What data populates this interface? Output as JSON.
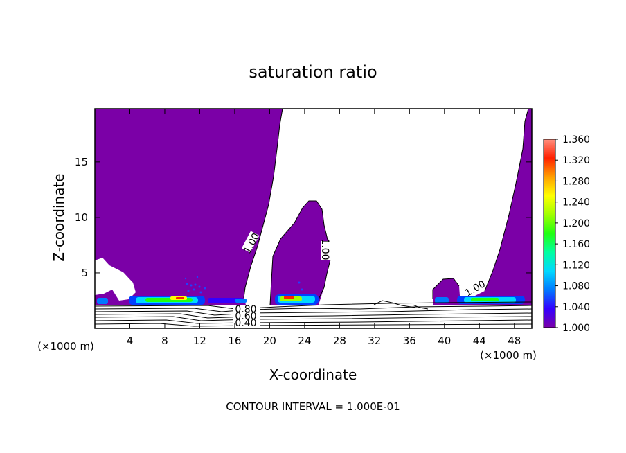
{
  "chart_data": {
    "type": "heatmap",
    "title": "saturation ratio",
    "xlabel": "X-coordinate",
    "ylabel": "Z-coordinate",
    "x_unit_left": "(×1000 m)",
    "x_unit_right": "(×1000 m)",
    "footer": "CONTOUR INTERVAL = 1.000E-01",
    "xlim": [
      0,
      50
    ],
    "ylim": [
      0,
      19.8
    ],
    "xticks": [
      4,
      8,
      12,
      16,
      20,
      24,
      28,
      32,
      36,
      40,
      44,
      48
    ],
    "yticks": [
      5,
      10,
      15
    ],
    "colorbar": {
      "min": 1.0,
      "max": 1.36,
      "labels": [
        "1.360",
        "1.320",
        "1.280",
        "1.240",
        "1.200",
        "1.160",
        "1.120",
        "1.080",
        "1.040",
        "1.000"
      ],
      "colors": [
        "#7b00a7",
        "#3300ff",
        "#0078ff",
        "#00d8ff",
        "#00ffa0",
        "#20ff10",
        "#a0ff00",
        "#ffff00",
        "#ffa000",
        "#ff2000",
        "#ff9080"
      ]
    },
    "contour_labels": [
      {
        "text": "1.00",
        "x": 17.0,
        "z": 7.0,
        "angle": -62
      },
      {
        "text": "1.00",
        "x": 26.5,
        "z": 7.0,
        "angle": 90
      },
      {
        "text": "1.00",
        "x": 43.5,
        "z": 3.6,
        "angle": -30
      },
      {
        "text": "0.80",
        "x": 17.5,
        "z": 1.6,
        "angle": 0
      },
      {
        "text": "0.60",
        "x": 17.5,
        "z": 1.0,
        "angle": 0
      },
      {
        "text": "0.40",
        "x": 17.5,
        "z": 0.4,
        "angle": 0
      }
    ]
  }
}
